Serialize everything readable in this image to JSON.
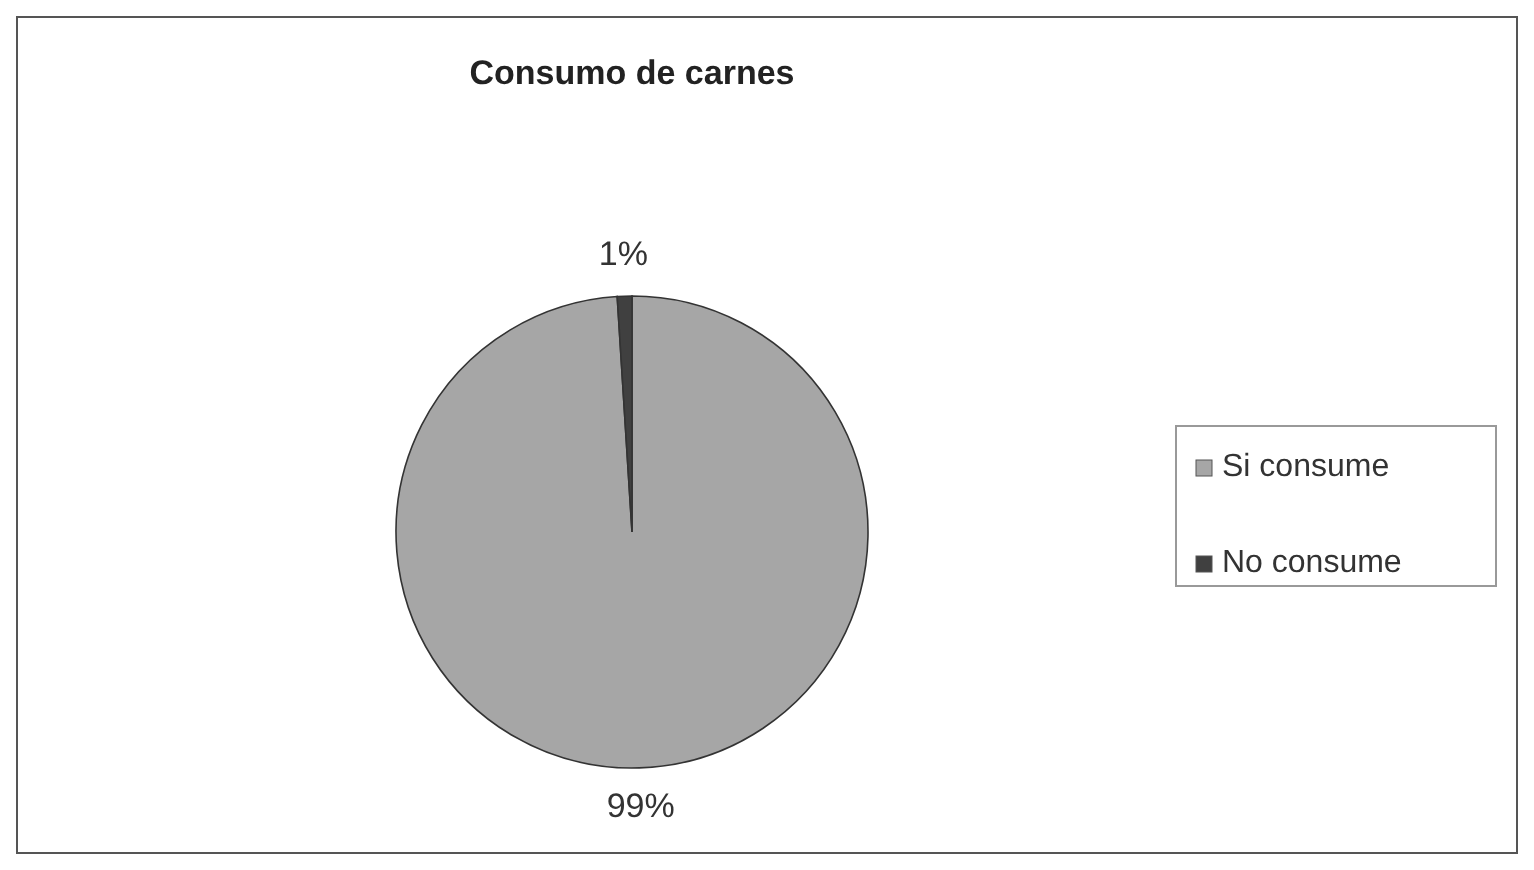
{
  "chart_data": {
    "type": "pie",
    "title": "Consumo de carnes",
    "categories": [
      "Si consume",
      "No consume"
    ],
    "values": [
      99,
      1
    ],
    "colors": [
      "#a6a6a6",
      "#404040"
    ],
    "value_labels": [
      "99%",
      "1%"
    ],
    "legend": "right"
  }
}
